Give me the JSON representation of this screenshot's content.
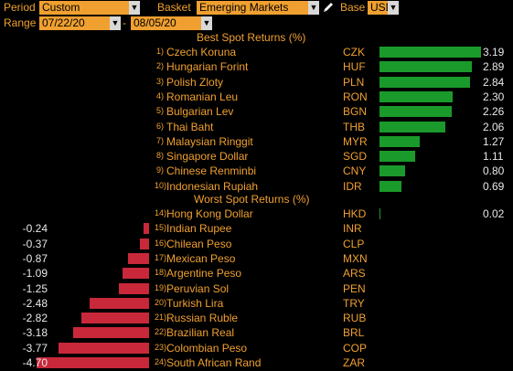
{
  "toolbar": {
    "period_label": "Period",
    "period_value": "Custom",
    "basket_label": "Basket",
    "basket_value": "Emerging Markets",
    "base_label": "Base",
    "base_value": "USD",
    "range_label": "Range",
    "range_start": "07/22/20",
    "range_sep": "-",
    "range_end": "08/05/20"
  },
  "best": {
    "title": "Best Spot Returns (%)",
    "rows": [
      {
        "rank": "1)",
        "name": "Czech Koruna",
        "ccy": "CZK",
        "value": "3.19"
      },
      {
        "rank": "2)",
        "name": "Hungarian Forint",
        "ccy": "HUF",
        "value": "2.89"
      },
      {
        "rank": "3)",
        "name": "Polish Zloty",
        "ccy": "PLN",
        "value": "2.84"
      },
      {
        "rank": "4)",
        "name": "Romanian Leu",
        "ccy": "RON",
        "value": "2.30"
      },
      {
        "rank": "5)",
        "name": "Bulgarian Lev",
        "ccy": "BGN",
        "value": "2.26"
      },
      {
        "rank": "6)",
        "name": "Thai Baht",
        "ccy": "THB",
        "value": "2.06"
      },
      {
        "rank": "7)",
        "name": "Malaysian Ringgit",
        "ccy": "MYR",
        "value": "1.27"
      },
      {
        "rank": "8)",
        "name": "Singapore Dollar",
        "ccy": "SGD",
        "value": "1.11"
      },
      {
        "rank": "9)",
        "name": "Chinese Renminbi",
        "ccy": "CNY",
        "value": "0.80"
      },
      {
        "rank": "10)",
        "name": "Indonesian Rupiah",
        "ccy": "IDR",
        "value": "0.69"
      }
    ]
  },
  "worst": {
    "title": "Worst Spot Returns (%)",
    "rows": [
      {
        "rank": "14)",
        "name": "Hong Kong Dollar",
        "ccy": "HKD",
        "value": "0.02"
      },
      {
        "rank": "15)",
        "name": "Indian Rupee",
        "ccy": "INR",
        "value": "-0.24"
      },
      {
        "rank": "16)",
        "name": "Chilean Peso",
        "ccy": "CLP",
        "value": "-0.37"
      },
      {
        "rank": "17)",
        "name": "Mexican Peso",
        "ccy": "MXN",
        "value": "-0.87"
      },
      {
        "rank": "18)",
        "name": "Argentine Peso",
        "ccy": "ARS",
        "value": "-1.09"
      },
      {
        "rank": "19)",
        "name": "Peruvian Sol",
        "ccy": "PEN",
        "value": "-1.25"
      },
      {
        "rank": "20)",
        "name": "Turkish Lira",
        "ccy": "TRY",
        "value": "-2.48"
      },
      {
        "rank": "21)",
        "name": "Russian Ruble",
        "ccy": "RUB",
        "value": "-2.82"
      },
      {
        "rank": "22)",
        "name": "Brazilian Real",
        "ccy": "BRL",
        "value": "-3.18"
      },
      {
        "rank": "23)",
        "name": "Colombian Peso",
        "ccy": "COP",
        "value": "-3.77"
      },
      {
        "rank": "24)",
        "name": "South African Rand",
        "ccy": "ZAR",
        "value": "-4.70"
      }
    ]
  },
  "colors": {
    "accent": "#f0a030",
    "positive": "#1a9a2a",
    "negative": "#c8283a",
    "value_text": "#e8e8e8"
  },
  "icons": {
    "dropdown": "chevron-down-icon",
    "edit": "pencil-icon"
  }
}
